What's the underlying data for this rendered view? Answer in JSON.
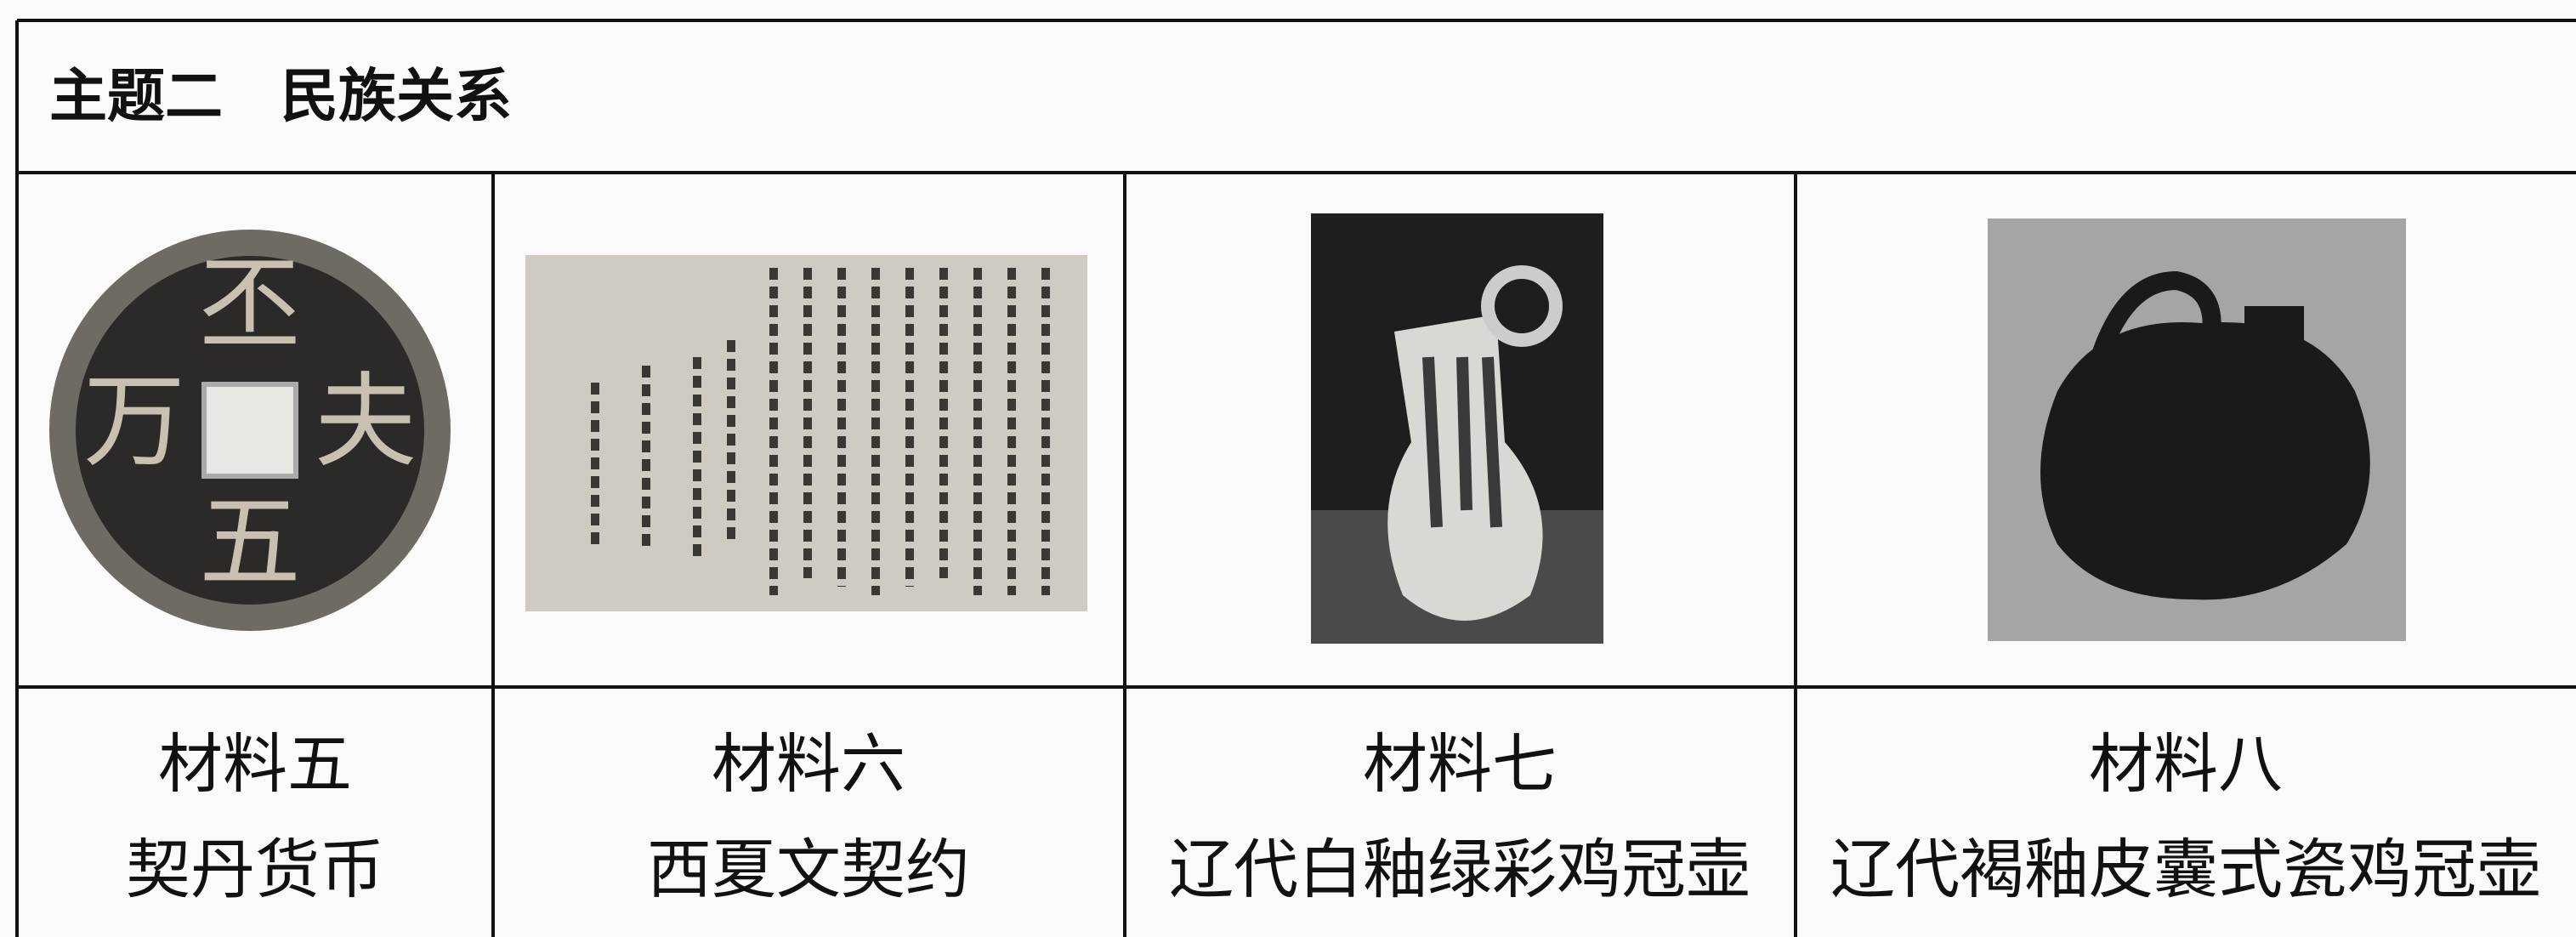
{
  "header": {
    "title": "主题二　民族关系"
  },
  "coin_inscription": [
    "丕",
    "夫",
    "五",
    "万"
  ],
  "materials": [
    {
      "label": "材料五",
      "caption": "契丹货币"
    },
    {
      "label": "材料六",
      "caption": "西夏文契约"
    },
    {
      "label": "材料七",
      "caption": "辽代白釉绿彩鸡冠壶"
    },
    {
      "label": "材料八",
      "caption": "辽代褐釉皮囊式瓷鸡冠壶"
    }
  ]
}
